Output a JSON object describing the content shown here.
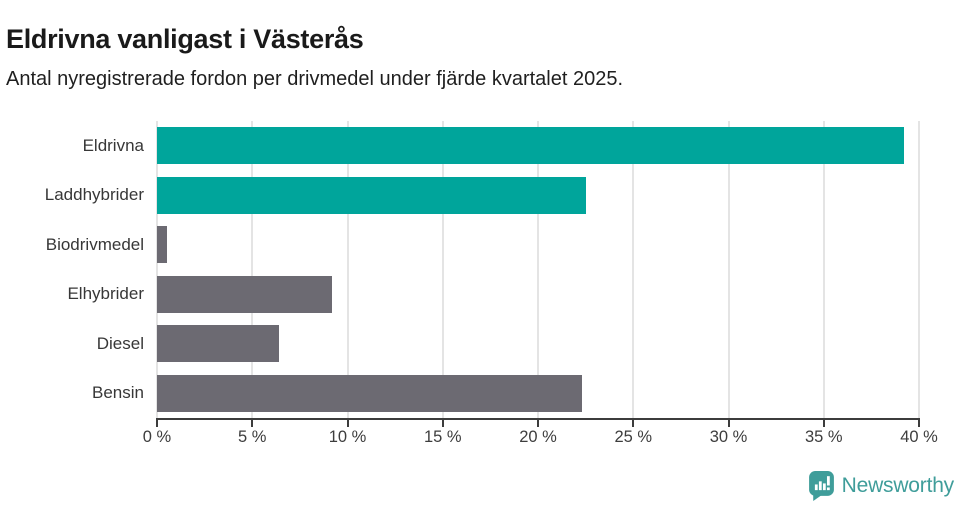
{
  "header": {
    "title": "Eldrivna vanligast i Västerås",
    "subtitle": "Antal nyregistrerade fordon per drivmedel under fjärde kvartalet 2025."
  },
  "chart_data": {
    "type": "bar",
    "orientation": "horizontal",
    "title": "Eldrivna vanligast i Västerås",
    "subtitle": "Antal nyregistrerade fordon per drivmedel under fjärde kvartalet 2025.",
    "categories": [
      "Eldrivna",
      "Laddhybrider",
      "Biodrivmedel",
      "Elhybrider",
      "Diesel",
      "Bensin"
    ],
    "values": [
      39.2,
      22.5,
      0.5,
      9.2,
      6.4,
      22.3
    ],
    "unit": "%",
    "bar_colors": [
      "#00a59b",
      "#00a59b",
      "#6c6a72",
      "#6c6a72",
      "#6c6a72",
      "#6c6a72"
    ],
    "xlabel": "",
    "ylabel": "",
    "xlim": [
      0,
      40
    ],
    "x_ticks": [
      0,
      5,
      10,
      15,
      20,
      25,
      30,
      35,
      40
    ],
    "x_tick_labels": [
      "0 %",
      "5 %",
      "10 %",
      "15 %",
      "20 %",
      "25 %",
      "30 %",
      "35 %",
      "40 %"
    ],
    "grid": "vertical-gridlines-on",
    "legend": "none"
  },
  "colors": {
    "teal": "#00a59b",
    "gray": "#6c6a72",
    "gridline": "#e4e4e4",
    "axis": "#3c3c3c",
    "title_text": "#1a1a1a",
    "label_text": "#373737",
    "brand_teal": "#3f9d9a"
  },
  "footer": {
    "brand_name": "Newsworthy",
    "logo_icon": "bar-chart-speech-bubble-icon"
  }
}
